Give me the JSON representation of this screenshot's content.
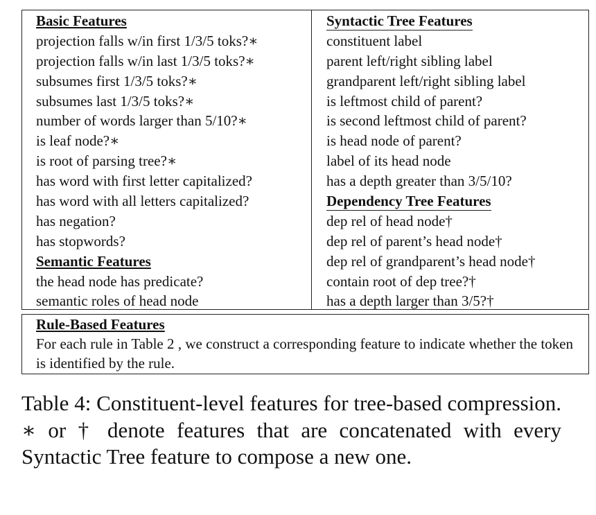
{
  "basic": {
    "title": "Basic Features",
    "items": [
      "projection falls w/in first 1/3/5 toks?∗",
      "projection falls w/in last 1/3/5 toks?∗",
      "subsumes first 1/3/5 toks?∗",
      "subsumes last 1/3/5 toks?∗",
      "number of words larger than 5/10?∗",
      "is leaf node?∗",
      "is root of parsing tree?∗",
      "has word with first letter capitalized?",
      "has word with all letters capitalized?",
      "has negation?",
      "has stopwords?"
    ]
  },
  "semantic": {
    "title": "Semantic Features",
    "items": [
      "the head node has predicate?",
      "semantic roles of head node"
    ]
  },
  "syntactic": {
    "title": "Syntactic Tree Features",
    "items": [
      "constituent label",
      "parent left/right sibling label",
      "grandparent left/right sibling label",
      "is leftmost child of parent?",
      "is second leftmost child of parent?",
      "is head node of parent?",
      "label of its head node",
      "has a depth greater than 3/5/10?"
    ]
  },
  "dependency": {
    "title": "Dependency Tree Features",
    "items": [
      "dep rel of head node†",
      "dep rel of parent’s head node†",
      "dep rel of grandparent’s head node†",
      "contain root of dep tree?†",
      "has a depth larger than 3/5?†"
    ]
  },
  "rule_based": {
    "title": "Rule-Based Features",
    "text": "For each rule in Table 2 , we construct a corresponding feature to indicate whether the token is identified by the rule."
  },
  "caption": "Table 4: Constituent-level features for tree-based compression. ∗ or † denote features that are concatenated with every Syntactic Tree feature to compose a new one."
}
